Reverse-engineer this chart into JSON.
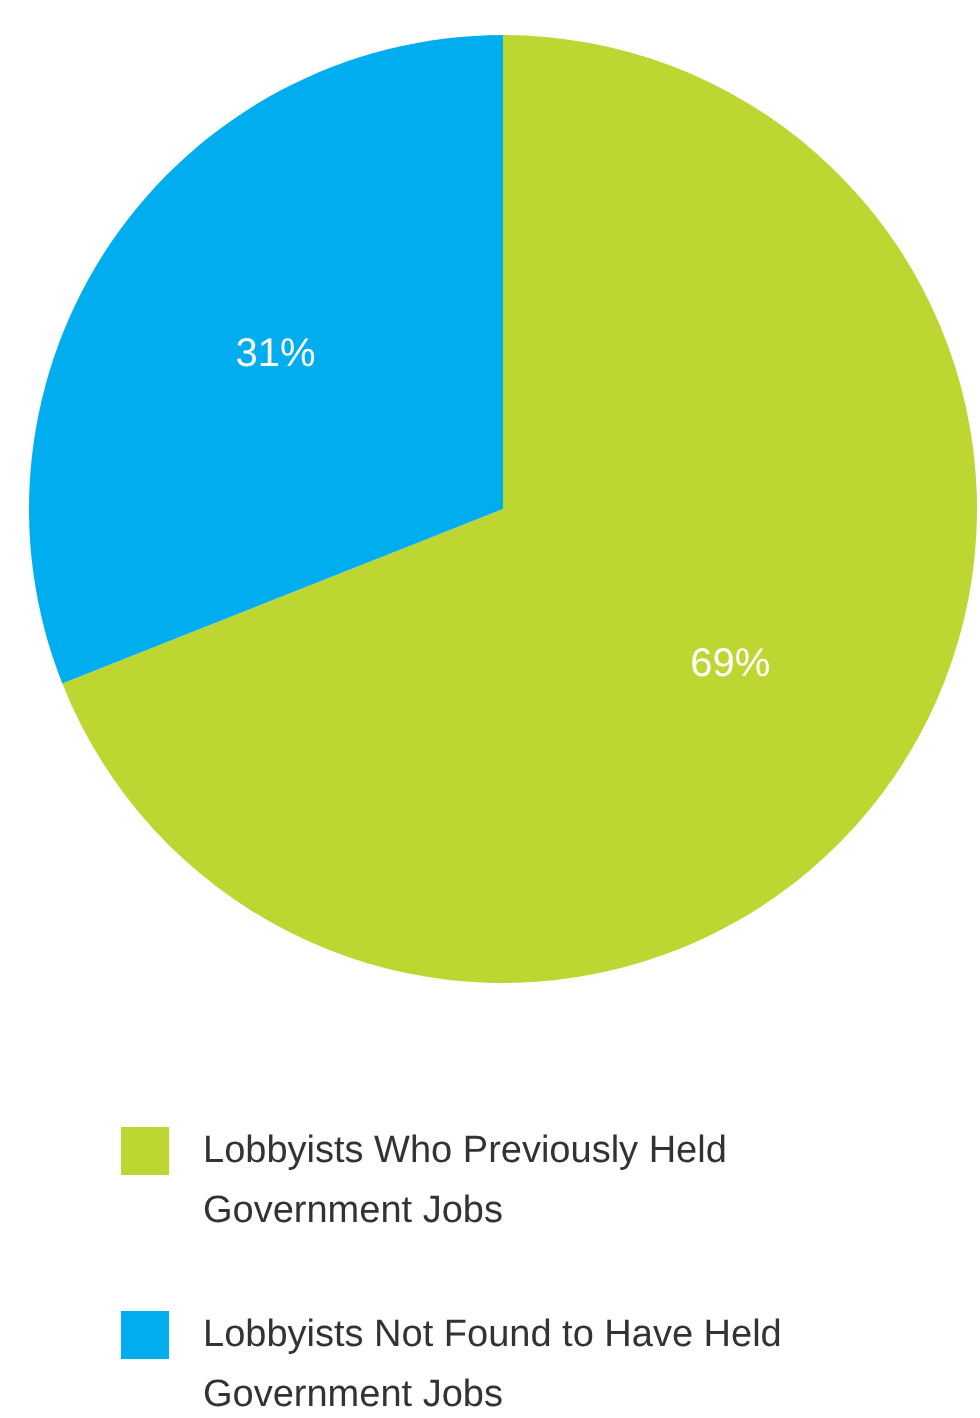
{
  "chart_data": {
    "type": "pie",
    "categories": [
      "Lobbyists Who Previously Held Government Jobs",
      "Lobbyists Not Found to Have Held Government Jobs"
    ],
    "values": [
      69,
      31
    ],
    "colors": [
      "#bdd631",
      "#00aeef"
    ],
    "value_labels": [
      "69%",
      "31%"
    ],
    "legend": "bottom"
  }
}
